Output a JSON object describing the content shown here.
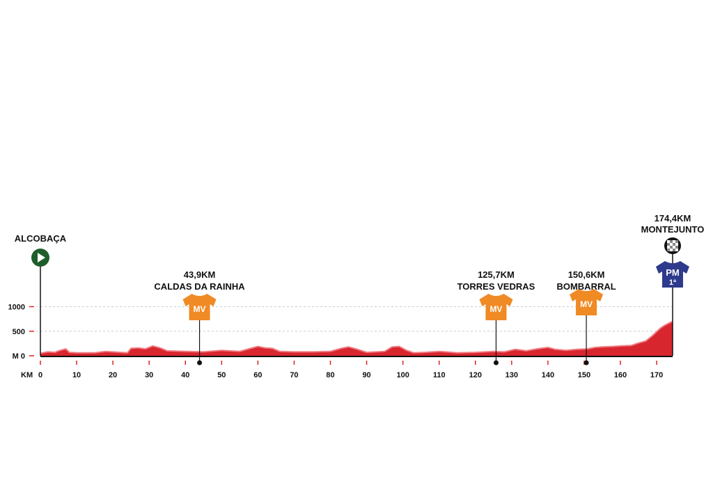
{
  "chart_data": {
    "type": "area",
    "title": "",
    "xlabel": "KM",
    "ylabel": "M",
    "xlim": [
      0,
      174.4
    ],
    "ylim": [
      0,
      1000
    ],
    "grid": "dashed horizontal at 500 and 1000",
    "x_ticks": [
      0,
      10,
      20,
      30,
      40,
      50,
      60,
      70,
      80,
      90,
      100,
      110,
      120,
      130,
      140,
      150,
      160,
      170
    ],
    "x_tick_labels": [
      "0",
      "10",
      "20",
      "30",
      "40",
      "50",
      "60",
      "70",
      "80",
      "90",
      "100",
      "110",
      "120",
      "130",
      "140",
      "150",
      "160",
      "170"
    ],
    "y_ticks": [
      0,
      500,
      1000
    ],
    "y_tick_labels": [
      "M 0",
      "500",
      "1000"
    ],
    "series": [
      {
        "x": [
          0,
          2,
          4,
          5,
          7,
          8,
          10,
          15,
          18,
          22,
          24,
          25,
          27,
          29,
          31,
          33,
          35,
          40,
          45,
          50,
          55,
          58,
          60,
          62,
          64,
          66,
          70,
          75,
          80,
          83,
          85,
          87,
          90,
          95,
          97,
          99,
          101,
          103,
          106,
          110,
          115,
          120,
          125,
          128,
          131,
          134,
          137,
          140,
          142,
          145,
          148,
          151,
          153,
          155,
          158,
          160,
          163,
          165,
          167,
          169,
          171,
          172,
          173,
          174.4
        ],
        "y": [
          50,
          80,
          70,
          100,
          140,
          70,
          60,
          60,
          90,
          70,
          60,
          150,
          160,
          140,
          200,
          160,
          100,
          90,
          80,
          110,
          90,
          150,
          190,
          160,
          150,
          90,
          80,
          80,
          90,
          150,
          180,
          140,
          70,
          90,
          180,
          190,
          110,
          60,
          70,
          90,
          60,
          70,
          90,
          80,
          130,
          100,
          140,
          170,
          130,
          110,
          130,
          140,
          170,
          180,
          190,
          200,
          210,
          260,
          300,
          420,
          560,
          610,
          650,
          700
        ]
      }
    ],
    "colors": {
      "profile_fill": "#d8262f",
      "profile_line": "#f07a80",
      "start_marker": "#1e5e2a",
      "sprint_jersey": "#f08a24",
      "mountain_jersey": "#2e3a8c",
      "tick_marks": "#e02020"
    },
    "markers": [
      {
        "id": "start",
        "km": 0,
        "place": "ALCOBAÇA",
        "distance": "",
        "icon": "play-icon"
      },
      {
        "id": "sprint1",
        "km": 43.9,
        "place": "CALDAS DA RAINHA",
        "distance": "43,9KM",
        "icon": "jersey-icon",
        "badge": "MV",
        "badge_sub": ""
      },
      {
        "id": "sprint2",
        "km": 125.7,
        "place": "TORRES VEDRAS",
        "distance": "125,7KM",
        "icon": "jersey-icon",
        "badge": "MV",
        "badge_sub": ""
      },
      {
        "id": "sprint3",
        "km": 150.6,
        "place": "BOMBARRAL",
        "distance": "150,6KM",
        "icon": "jersey-icon",
        "badge": "MV",
        "badge_sub": ""
      },
      {
        "id": "finish",
        "km": 174.4,
        "place": "MONTEJUNTO",
        "distance": "174,4KM",
        "icon": "finish-flag-icon",
        "badge": "PM",
        "badge_sub": "1ª"
      }
    ]
  }
}
